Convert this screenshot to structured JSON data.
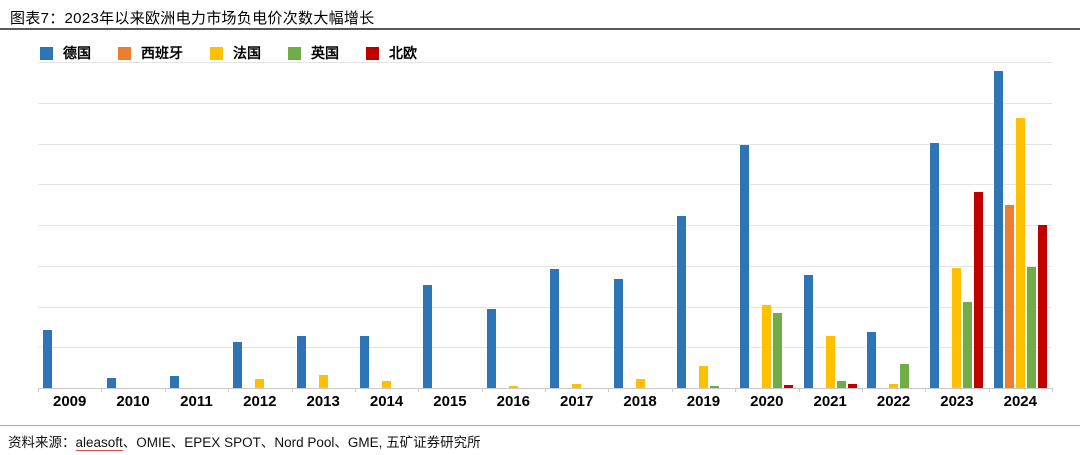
{
  "figure": {
    "title": "图表7：2023年以来欧洲电力市场负电价次数大幅增长"
  },
  "source": {
    "prefix": "资料来源：",
    "link": "aleasoft",
    "suffix": "、OMIE、EPEX SPOT、Nord Pool、GME, 五矿证券研究所"
  },
  "chart_data": {
    "type": "bar",
    "title": "图表7：2023年以来欧洲电力市场负电价次数大幅增长",
    "categories": [
      "2009",
      "2010",
      "2011",
      "2012",
      "2013",
      "2014",
      "2015",
      "2016",
      "2017",
      "2018",
      "2019",
      "2020",
      "2021",
      "2022",
      "2023",
      "2024"
    ],
    "series": [
      {
        "key": "germany",
        "name": "德国",
        "color": "#2E75B6",
        "values": [
          71,
          12,
          15,
          56,
          64,
          64,
          126,
          97,
          146,
          134,
          211,
          298,
          139,
          69,
          301,
          389
        ]
      },
      {
        "key": "spain",
        "name": "西班牙",
        "color": "#ED7D31",
        "values": [
          0,
          0,
          0,
          0,
          0,
          0,
          0,
          0,
          0,
          0,
          0,
          0,
          0,
          0,
          0,
          224
        ]
      },
      {
        "key": "france",
        "name": "法国",
        "color": "#FFC000",
        "values": [
          0,
          0,
          0,
          11,
          16,
          9,
          0,
          3,
          5,
          11,
          27,
          102,
          64,
          5,
          147,
          331
        ]
      },
      {
        "key": "uk",
        "name": "英国",
        "color": "#70AD47",
        "values": [
          0,
          0,
          0,
          0,
          0,
          0,
          0,
          0,
          0,
          0,
          2,
          92,
          8,
          30,
          106,
          148
        ]
      },
      {
        "key": "nordic",
        "name": "北欧",
        "color": "#C00000",
        "values": [
          0,
          0,
          0,
          0,
          0,
          0,
          0,
          0,
          0,
          0,
          0,
          4,
          5,
          0,
          240,
          200
        ]
      }
    ],
    "xlabel": "",
    "ylabel": "",
    "ylim": [
      0,
      400
    ],
    "grid_step": 50,
    "grid": "horizontal",
    "y_axis_labels_visible": false,
    "legend_position": "top-left"
  },
  "colors": {
    "grid": "#e4e4e4",
    "axis": "#c9c9c9",
    "title_rule": "#595959",
    "source_rule": "#ababab",
    "link_underline": "#e05252"
  }
}
